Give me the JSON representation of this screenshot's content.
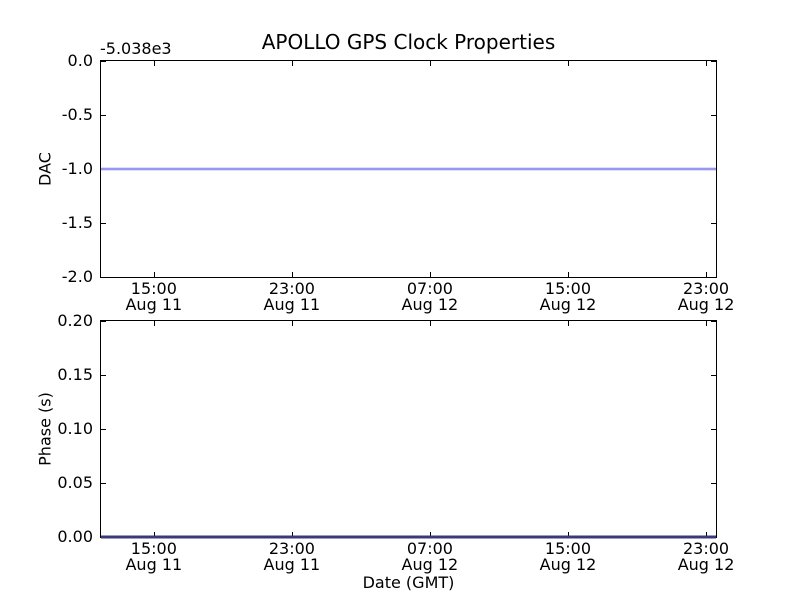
{
  "figure": {
    "title": "APOLLO GPS Clock Properties",
    "background": "#ffffff"
  },
  "colors": {
    "axis": "#000000",
    "dac_line_blue": "#7e7eef",
    "phase_line_navy": "#3a3a78"
  },
  "chart_data": [
    {
      "type": "line",
      "position": "top",
      "ylabel": "DAC",
      "y_offset_label": "-5.038e3",
      "ylim": [
        -2.0,
        0.0
      ],
      "yticks": [
        0.0,
        -0.5,
        -1.0,
        -1.5,
        -2.0
      ],
      "ytick_labels": [
        "0.0",
        "-0.5",
        "-1.0",
        "-1.5",
        "-2.0"
      ],
      "xtick_labels": [
        [
          "15:00",
          "Aug 11"
        ],
        [
          "23:00",
          "Aug 11"
        ],
        [
          "07:00",
          "Aug 12"
        ],
        [
          "15:00",
          "Aug 12"
        ],
        [
          "23:00",
          "Aug 12"
        ]
      ],
      "grid": false,
      "legend": null,
      "series": [
        {
          "name": "DAC",
          "color": "#7e7eef",
          "soft": true,
          "y_constant": -1.0,
          "description": "constant horizontal blue line at DAC = -1.0 (axis offset -5.038e3) across the full time range"
        }
      ]
    },
    {
      "type": "line",
      "position": "bottom",
      "ylabel": "Phase (s)",
      "xlabel": "Date (GMT)",
      "ylim": [
        0.0,
        0.2
      ],
      "yticks": [
        0.2,
        0.15,
        0.1,
        0.05,
        0.0
      ],
      "ytick_labels": [
        "0.20",
        "0.15",
        "0.10",
        "0.05",
        "0.00"
      ],
      "xtick_labels": [
        [
          "15:00",
          "Aug 11"
        ],
        [
          "23:00",
          "Aug 11"
        ],
        [
          "07:00",
          "Aug 12"
        ],
        [
          "15:00",
          "Aug 12"
        ],
        [
          "23:00",
          "Aug 12"
        ]
      ],
      "grid": false,
      "legend": null,
      "series": [
        {
          "name": "Phase",
          "color": "#3a3a78",
          "soft": false,
          "y_constant": 0.0,
          "description": "constant horizontal line at Phase = 0.0 s, overlapping the bottom axis spine"
        }
      ]
    }
  ],
  "layout": {
    "xtick_pct": [
      8.59,
      31.04,
      53.48,
      75.93,
      98.38
    ],
    "ytick_pct": [
      0,
      25,
      50,
      75,
      100
    ],
    "x_axis_shared_range": "Aug 11 ~11:00 GMT to Aug 13 ~00:00 GMT, major ticks every 8 hours"
  }
}
